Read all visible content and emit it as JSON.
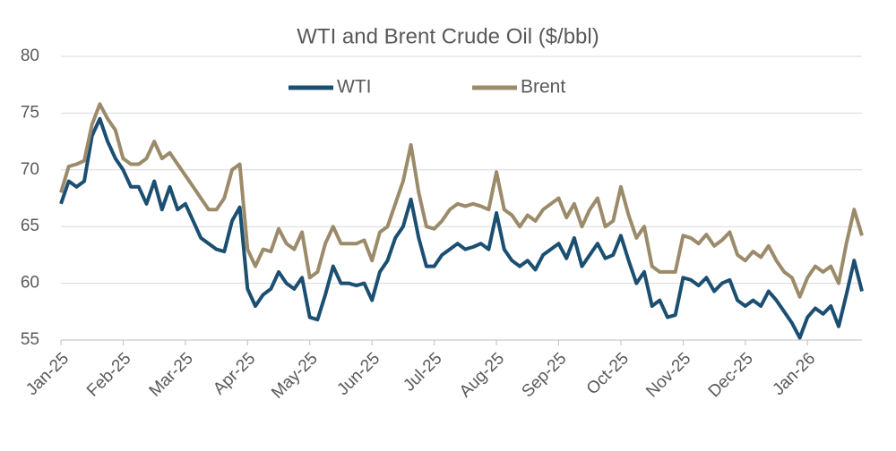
{
  "chart_data": {
    "type": "line",
    "title": "WTI and Brent Crude Oil ($/bbl)",
    "categories": [
      "Jan-25",
      null,
      null,
      null,
      null,
      null,
      null,
      null,
      "Feb-25",
      null,
      null,
      null,
      null,
      null,
      null,
      null,
      "Mar-25",
      null,
      null,
      null,
      null,
      null,
      null,
      null,
      "Apr-25",
      null,
      null,
      null,
      null,
      null,
      null,
      null,
      "May-25",
      null,
      null,
      null,
      null,
      null,
      null,
      null,
      "Jun-25",
      null,
      null,
      null,
      null,
      null,
      null,
      null,
      "Jul-25",
      null,
      null,
      null,
      null,
      null,
      null,
      null,
      "Aug-25",
      null,
      null,
      null,
      null,
      null,
      null,
      null,
      "Sep-25",
      null,
      null,
      null,
      null,
      null,
      null,
      null,
      "Oct-25",
      null,
      null,
      null,
      null,
      null,
      null,
      null,
      "Nov-25",
      null,
      null,
      null,
      null,
      null,
      null,
      null,
      "Dec-25",
      null,
      null,
      null,
      null,
      null,
      null,
      null,
      "Jan-26",
      null,
      null,
      null,
      null,
      null,
      null,
      null
    ],
    "series": [
      {
        "name": "WTI",
        "color": "#1b4f72",
        "values": [
          67,
          69,
          68.5,
          69,
          73,
          74.5,
          72.5,
          71,
          70,
          68.5,
          68.5,
          67,
          69,
          66.5,
          68.5,
          66.5,
          67,
          65.5,
          64,
          63.5,
          63,
          62.8,
          65.5,
          66.7,
          59.5,
          58,
          59,
          59.5,
          61,
          60,
          59.5,
          60.5,
          57,
          56.8,
          59,
          61.5,
          60,
          60,
          59.8,
          60,
          58.5,
          61,
          62,
          64,
          65,
          67.4,
          64,
          61.5,
          61.5,
          62.5,
          63,
          63.5,
          63,
          63.2,
          63.5,
          63,
          66.2,
          63,
          62,
          61.5,
          62,
          61.2,
          62.5,
          63,
          63.5,
          62.2,
          64,
          61.5,
          62.5,
          63.5,
          62.2,
          62.5,
          64.2,
          62,
          60,
          61,
          58,
          58.5,
          57,
          57.2,
          60.5,
          60.3,
          59.8,
          60.5,
          59.3,
          60,
          60.3,
          58.5,
          58,
          58.5,
          58,
          59.3,
          58.5,
          57.5,
          56.5,
          55.2,
          57,
          57.8,
          57.3,
          58,
          56.2,
          59,
          62,
          59.3
        ]
      },
      {
        "name": "Brent",
        "color": "#9c8b6a",
        "values": [
          68,
          70.3,
          70.5,
          70.8,
          74,
          75.8,
          74.5,
          73.5,
          71,
          70.5,
          70.5,
          71,
          72.5,
          71,
          71.5,
          70.5,
          69.5,
          68.5,
          67.5,
          66.5,
          66.5,
          67.5,
          70,
          70.5,
          63,
          61.5,
          63,
          62.8,
          64.8,
          63.5,
          63,
          64.5,
          60.5,
          61,
          63.5,
          65,
          63.5,
          63.5,
          63.5,
          63.8,
          62,
          64.5,
          65,
          67,
          69,
          72.2,
          68,
          65,
          64.8,
          65.5,
          66.5,
          67,
          66.8,
          67,
          66.8,
          66.5,
          69.8,
          66.5,
          66,
          65,
          66,
          65.5,
          66.5,
          67,
          67.5,
          65.8,
          67,
          65,
          66.5,
          67.5,
          65,
          65.5,
          68.5,
          66,
          64,
          65,
          61.5,
          61,
          61,
          61,
          64.2,
          64,
          63.5,
          64.3,
          63.3,
          63.8,
          64.5,
          62.5,
          62,
          62.8,
          62.3,
          63.3,
          62,
          61,
          60.5,
          58.8,
          60.5,
          61.5,
          61,
          61.5,
          60,
          63.5,
          66.5,
          64.2
        ]
      }
    ],
    "ylim": [
      55,
      80
    ],
    "yticks": [
      55,
      60,
      65,
      70,
      75,
      80
    ],
    "grid": true
  }
}
